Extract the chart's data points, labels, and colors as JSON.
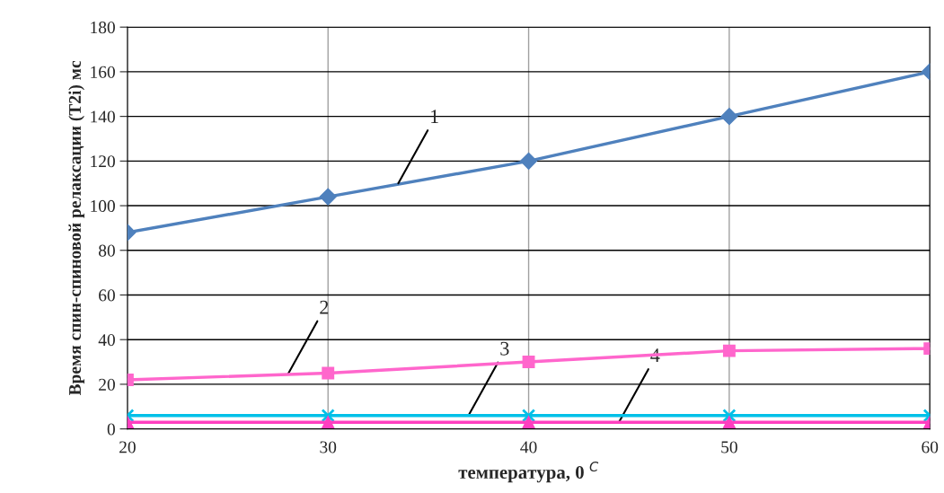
{
  "chart_data": {
    "type": "line",
    "xlabel": "температура, 0 $^{C}$",
    "ylabel": "Время спин-спиновой релаксации (T2i) мс",
    "x": [
      20,
      30,
      40,
      50,
      60
    ],
    "series": [
      {
        "color": "#4f81bd",
        "marker": "diamond",
        "values": [
          88,
          104,
          120,
          140,
          160
        ]
      },
      {
        "color": "#ff66cc",
        "marker": "square",
        "values": [
          22,
          25,
          30,
          35,
          36
        ]
      },
      {
        "color": "#00c0e8",
        "marker": "cross",
        "values": [
          6,
          6,
          6,
          6,
          6
        ]
      },
      {
        "color": "#ff3fc0",
        "marker": "triangle",
        "values": [
          3,
          3,
          3,
          3,
          3
        ]
      }
    ],
    "annotations": [
      {
        "text": "1",
        "x": 33.5,
        "y": 110
      },
      {
        "text": "2",
        "x": 28,
        "y": 24.5
      },
      {
        "text": "3",
        "x": 37,
        "y": 6
      },
      {
        "text": "4",
        "x": 44.5,
        "y": 3
      }
    ],
    "xlim": [
      20,
      60
    ],
    "xticks": [
      20,
      30,
      40,
      50,
      60
    ],
    "ylim": [
      0,
      180
    ],
    "yticks": [
      0,
      20,
      40,
      60,
      80,
      100,
      120,
      140,
      160,
      180
    ],
    "grid": true,
    "line_style": "solid"
  }
}
